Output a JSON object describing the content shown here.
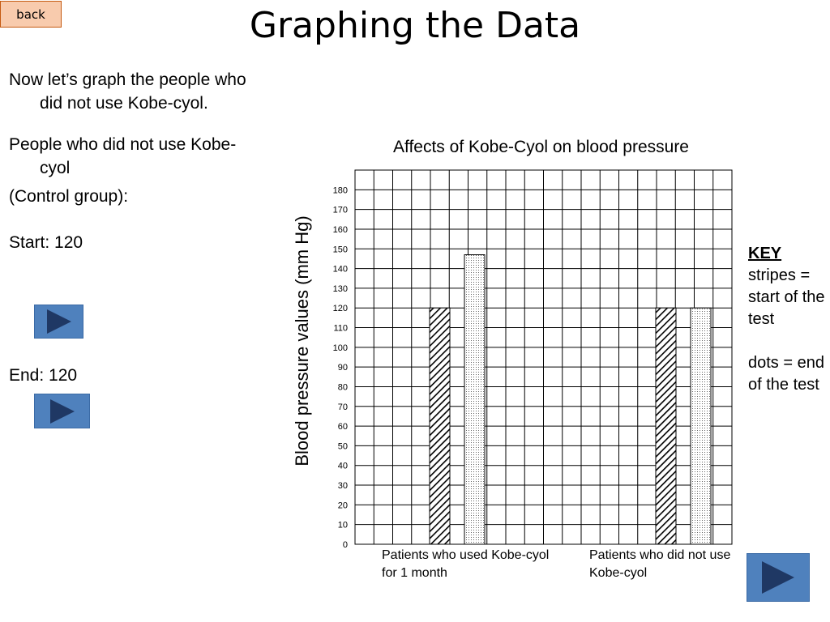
{
  "back_label": "back",
  "title": "Graphing the Data",
  "left": {
    "p1": "Now let’s graph the people who did not use Kobe-cyol.",
    "p2": "People who did not use Kobe-cyol",
    "p3": "(Control group):",
    "start_label": "Start: 120",
    "end_label": "End: 120"
  },
  "key": {
    "heading": "KEY",
    "stripes": "stripes = start of the test",
    "dots": "dots = end of the test"
  },
  "colors": {
    "button": "#4f81bd",
    "button_arrow": "#1f3864",
    "back_button": "#f8cbad"
  },
  "icons": {
    "play": "play-icon"
  },
  "chart_data": {
    "type": "bar",
    "title": "Affects of Kobe-Cyol on blood pressure",
    "ylabel": "Blood pressure values (mm  Hg)",
    "xlabel": "",
    "categories": [
      "Patients who used Kobe-cyol for 1 month",
      "Patients who did not use Kobe-cyol"
    ],
    "series": [
      {
        "name": "stripes = start of the test",
        "values": [
          120,
          120
        ]
      },
      {
        "name": "dots = end of the test",
        "values": [
          147,
          120
        ]
      }
    ],
    "yticks": [
      0,
      10,
      20,
      30,
      40,
      50,
      60,
      70,
      80,
      90,
      100,
      110,
      120,
      130,
      140,
      150,
      160,
      170,
      180
    ],
    "ylim": [
      0,
      190
    ],
    "grid": true,
    "legend": "right"
  }
}
